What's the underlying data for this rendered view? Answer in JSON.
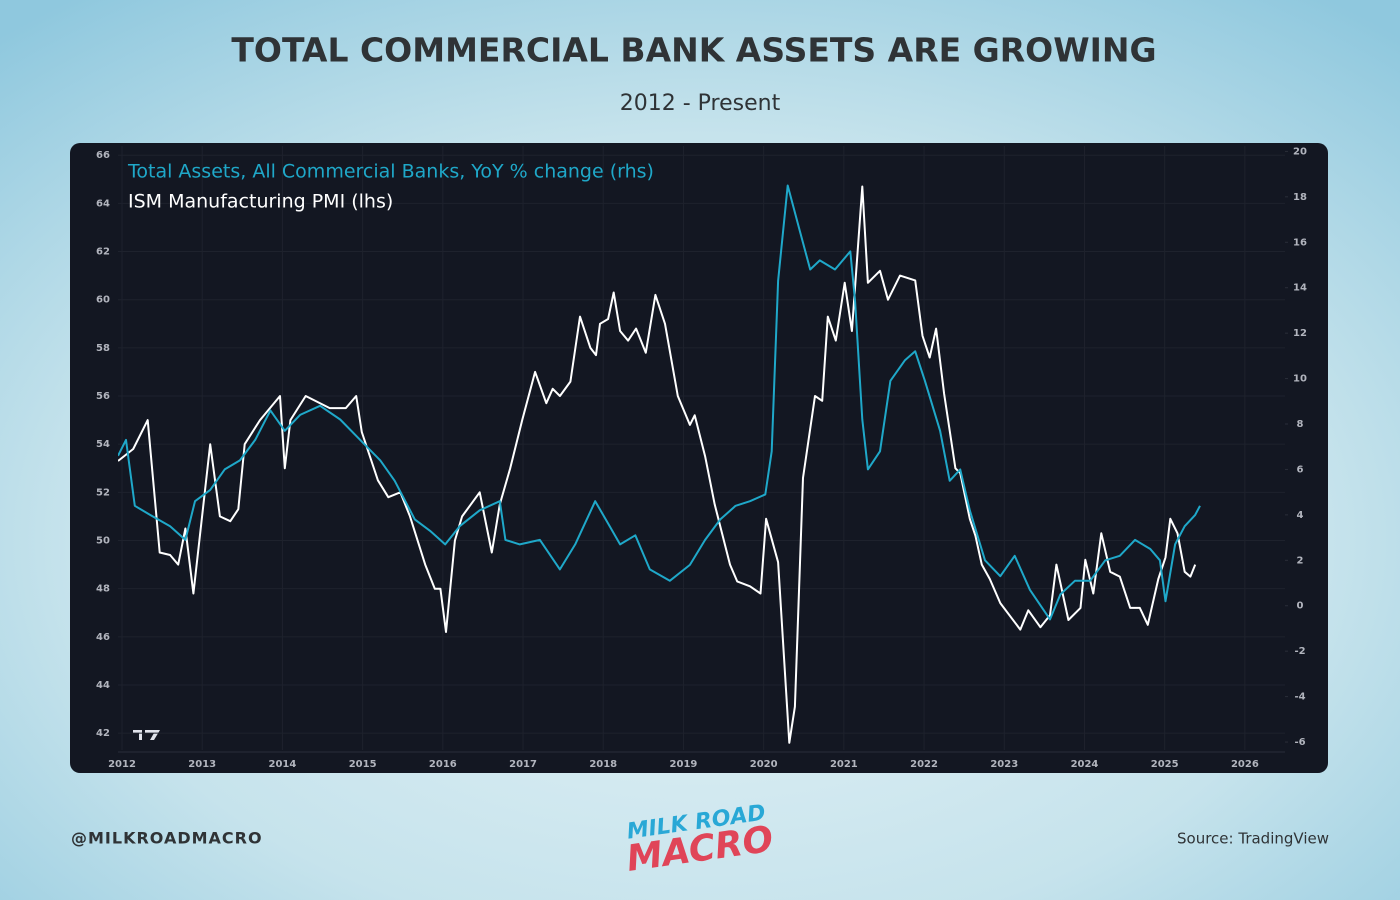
{
  "chart_data": {
    "type": "line",
    "title": "TOTAL COMMERCIAL BANK ASSETS ARE GROWING",
    "subtitle": "2012 - Present",
    "handle": "@MILKROADMACRO",
    "source": "Source: TradingView",
    "logo": {
      "line1": "MILK ROAD",
      "line2": "MACRO"
    },
    "xlim": [
      2011.95,
      2026.5
    ],
    "xticks": [
      2012,
      2013,
      2014,
      2015,
      2016,
      2017,
      2018,
      2019,
      2020,
      2021,
      2022,
      2023,
      2024,
      2025,
      2026
    ],
    "ylim": [
      41.3,
      66.3
    ],
    "yticks": [
      42,
      44,
      46,
      48,
      50,
      52,
      54,
      56,
      58,
      60,
      62,
      64,
      66
    ],
    "y2lim": [
      -6.35,
      20.15
    ],
    "y2ticks": [
      -6,
      -4,
      -2,
      0,
      2,
      4,
      6,
      8,
      10,
      12,
      14,
      16,
      18,
      20
    ],
    "grid": true,
    "legend": "top-left",
    "series": [
      {
        "name": "Total Assets, All Commercial Banks, YoY % change (rhs)",
        "color": "#1fa8c9",
        "axis": "y2",
        "x": [
          2011.95,
          2012.05,
          2012.16,
          2012.35,
          2012.6,
          2012.79,
          2012.91,
          2013.1,
          2013.28,
          2013.47,
          2013.66,
          2013.85,
          2014.03,
          2014.22,
          2014.47,
          2014.72,
          2014.97,
          2015.22,
          2015.4,
          2015.65,
          2015.84,
          2016.03,
          2016.21,
          2016.46,
          2016.71,
          2016.78,
          2016.96,
          2017.21,
          2017.46,
          2017.65,
          2017.9,
          2018.08,
          2018.21,
          2018.4,
          2018.58,
          2018.83,
          2019.08,
          2019.27,
          2019.46,
          2019.65,
          2019.83,
          2020.02,
          2020.1,
          2020.18,
          2020.3,
          2020.45,
          2020.58,
          2020.7,
          2020.89,
          2021.08,
          2021.14,
          2021.23,
          2021.3,
          2021.45,
          2021.58,
          2021.76,
          2021.89,
          2022.01,
          2022.2,
          2022.32,
          2022.45,
          2022.57,
          2022.76,
          2022.95,
          2023.13,
          2023.32,
          2023.57,
          2023.7,
          2023.88,
          2024.07,
          2024.26,
          2024.44,
          2024.63,
          2024.82,
          2024.94,
          2025.01,
          2025.13,
          2025.25,
          2025.38,
          2025.44
        ],
        "values": [
          6.6,
          7.3,
          4.4,
          4.0,
          3.5,
          2.9,
          4.6,
          5.1,
          6.0,
          6.4,
          7.3,
          8.6,
          7.7,
          8.4,
          8.8,
          8.2,
          7.3,
          6.4,
          5.5,
          3.8,
          3.3,
          2.7,
          3.5,
          4.2,
          4.6,
          2.9,
          2.7,
          2.9,
          1.6,
          2.7,
          4.6,
          3.5,
          2.7,
          3.1,
          1.6,
          1.1,
          1.8,
          2.9,
          3.8,
          4.4,
          4.6,
          4.9,
          6.8,
          14.3,
          18.5,
          16.5,
          14.8,
          15.2,
          14.8,
          15.6,
          13.4,
          8.2,
          6.0,
          6.8,
          9.9,
          10.8,
          11.2,
          9.9,
          7.7,
          5.5,
          6.0,
          4.2,
          2.0,
          1.3,
          2.2,
          0.7,
          -0.6,
          0.5,
          1.1,
          1.1,
          2.0,
          2.2,
          2.9,
          2.5,
          2.0,
          0.2,
          2.7,
          3.5,
          4.0,
          4.4
        ]
      },
      {
        "name": "ISM Manufacturing PMI (lhs)",
        "color": "#ffffff",
        "axis": "y",
        "x": [
          2011.95,
          2012.14,
          2012.32,
          2012.47,
          2012.6,
          2012.7,
          2012.79,
          2012.89,
          2013.1,
          2013.22,
          2013.35,
          2013.45,
          2013.53,
          2013.72,
          2013.97,
          2014.03,
          2014.1,
          2014.29,
          2014.59,
          2014.79,
          2014.92,
          2014.99,
          2015.19,
          2015.32,
          2015.47,
          2015.59,
          2015.78,
          2015.9,
          2015.97,
          2016.04,
          2016.15,
          2016.24,
          2016.46,
          2016.61,
          2016.71,
          2016.84,
          2016.99,
          2017.15,
          2017.29,
          2017.37,
          2017.46,
          2017.59,
          2017.71,
          2017.84,
          2017.91,
          2017.96,
          2018.06,
          2018.13,
          2018.21,
          2018.31,
          2018.41,
          2018.53,
          2018.65,
          2018.77,
          2018.93,
          2019.08,
          2019.14,
          2019.27,
          2019.39,
          2019.58,
          2019.67,
          2019.83,
          2019.96,
          2020.03,
          2020.18,
          2020.32,
          2020.39,
          2020.49,
          2020.64,
          2020.73,
          2020.8,
          2020.9,
          2021.01,
          2021.1,
          2021.23,
          2021.3,
          2021.45,
          2021.55,
          2021.7,
          2021.89,
          2021.98,
          2022.07,
          2022.15,
          2022.25,
          2022.39,
          2022.45,
          2022.57,
          2022.64,
          2022.72,
          2022.82,
          2022.95,
          2023.2,
          2023.3,
          2023.45,
          2023.57,
          2023.65,
          2023.8,
          2023.95,
          2024.01,
          2024.11,
          2024.21,
          2024.32,
          2024.44,
          2024.57,
          2024.69,
          2024.79,
          2024.92,
          2025.01,
          2025.07,
          2025.16,
          2025.25,
          2025.32,
          2025.38
        ],
        "values": [
          53.3,
          53.8,
          55.0,
          49.5,
          49.4,
          49.0,
          50.5,
          47.8,
          54.0,
          51.0,
          50.8,
          51.3,
          54.0,
          55.0,
          56.0,
          53.0,
          55.0,
          56.0,
          55.5,
          55.5,
          56.0,
          54.5,
          52.5,
          51.8,
          52.0,
          51.0,
          49.0,
          48.0,
          48.0,
          46.2,
          50.0,
          51.0,
          52.0,
          49.5,
          51.5,
          53.0,
          55.0,
          57.0,
          55.7,
          56.3,
          56.0,
          56.6,
          59.3,
          58.0,
          57.7,
          59.0,
          59.2,
          60.3,
          58.7,
          58.3,
          58.8,
          57.8,
          60.2,
          59.0,
          56.0,
          54.8,
          55.2,
          53.5,
          51.5,
          49.0,
          48.3,
          48.1,
          47.8,
          50.9,
          49.1,
          41.6,
          43.1,
          52.6,
          56.0,
          55.8,
          59.3,
          58.3,
          60.7,
          58.7,
          64.7,
          60.7,
          61.2,
          60.0,
          61.0,
          60.8,
          58.5,
          57.6,
          58.8,
          56.1,
          53.0,
          52.8,
          50.9,
          50.2,
          49.0,
          48.4,
          47.4,
          46.3,
          47.1,
          46.4,
          46.9,
          49.0,
          46.7,
          47.2,
          49.2,
          47.8,
          50.3,
          48.7,
          48.5,
          47.2,
          47.2,
          46.5,
          48.4,
          49.3,
          50.9,
          50.3,
          48.7,
          48.5,
          49.0
        ]
      }
    ]
  }
}
